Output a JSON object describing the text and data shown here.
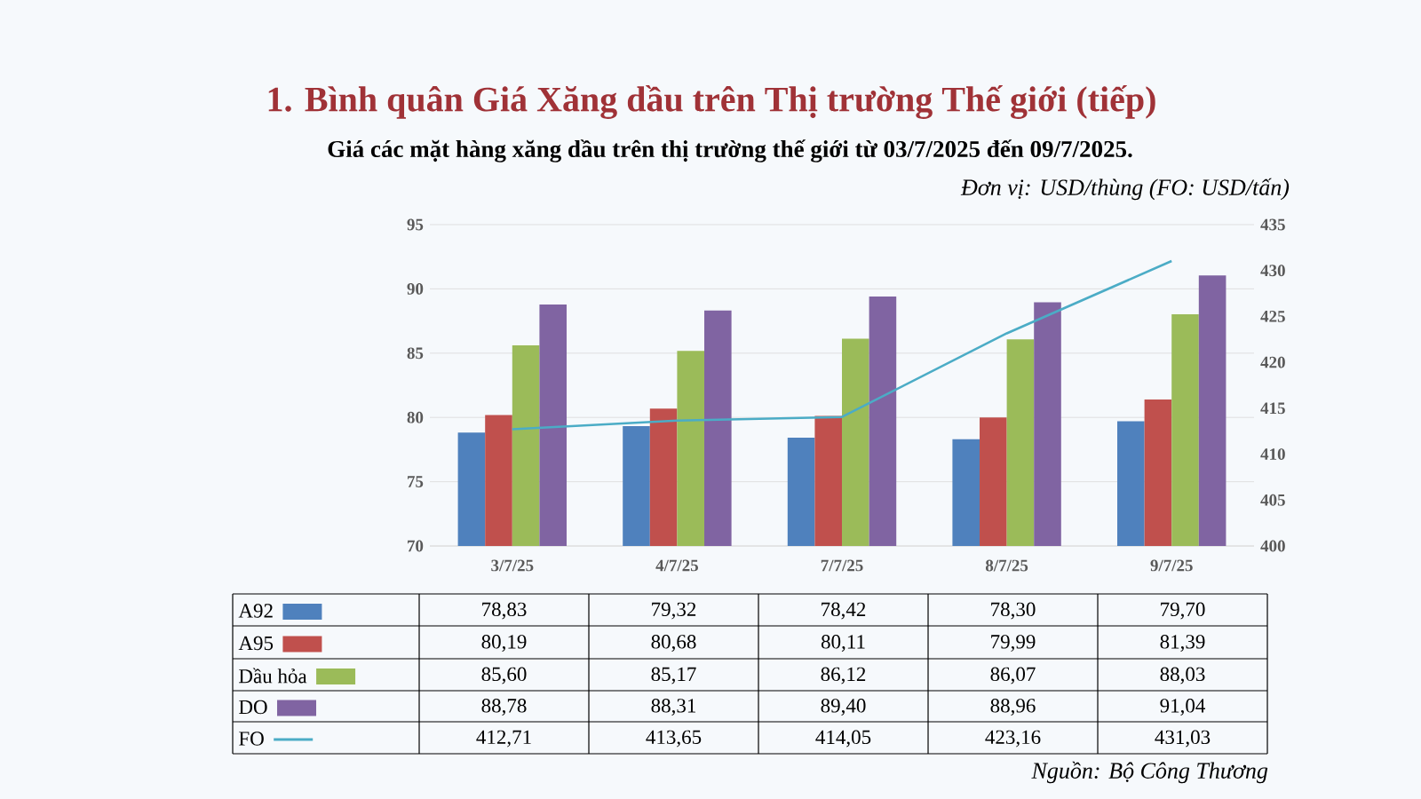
{
  "chart_data": {
    "type": "bar",
    "title": "1. Bình quân Giá Xăng dầu trên Thị trường Thế giới (tiếp)",
    "subtitle": "Giá các mặt hàng xăng dầu trên thị trường thế giới từ 03/7/2025 đến 09/7/2025.",
    "annotations": [
      "Đơn vị: USD/thùng (FO: USD/tấn)",
      "Nguồn: Bộ Công Thương"
    ],
    "categories": [
      "3/7/25",
      "4/7/25",
      "7/7/25",
      "8/7/25",
      "9/7/25"
    ],
    "series": [
      {
        "name": "A92",
        "color": "#4f81bd",
        "values": [
          78.83,
          79.32,
          78.42,
          78.3,
          79.7
        ],
        "value_labels": [
          "78,83",
          "79,32",
          "78,42",
          "78,30",
          "79,70"
        ]
      },
      {
        "name": "A95",
        "color": "#c0504d",
        "values": [
          80.19,
          80.68,
          80.11,
          79.99,
          81.39
        ],
        "value_labels": [
          "80,19",
          "80,68",
          "80,11",
          "79,99",
          "81,39"
        ]
      },
      {
        "name": "Dầu hỏa",
        "color": "#9bbb59",
        "values": [
          85.6,
          85.17,
          86.12,
          86.07,
          88.03
        ],
        "value_labels": [
          "85,60",
          "85,17",
          "86,12",
          "86,07",
          "88,03"
        ]
      },
      {
        "name": "DO",
        "color": "#8064a2",
        "values": [
          88.78,
          88.31,
          89.4,
          88.96,
          91.04
        ],
        "value_labels": [
          "88,78",
          "88,31",
          "89,40",
          "88,96",
          "91,04"
        ]
      },
      {
        "name": "FO",
        "type": "line",
        "axis": "y2",
        "color": "#4bacc6",
        "values": [
          412.71,
          413.65,
          414.05,
          423.16,
          431.03
        ],
        "value_labels": [
          "412,71",
          "413,65",
          "414,05",
          "423,16",
          "431,03"
        ]
      }
    ],
    "ylim": [
      70,
      95
    ],
    "yticks": [
      70,
      75,
      80,
      85,
      90,
      95
    ],
    "y2lim": [
      400,
      435
    ],
    "y2ticks": [
      400,
      405,
      410,
      415,
      420,
      425,
      430,
      435
    ],
    "grid": "y",
    "legend": "bottom"
  }
}
